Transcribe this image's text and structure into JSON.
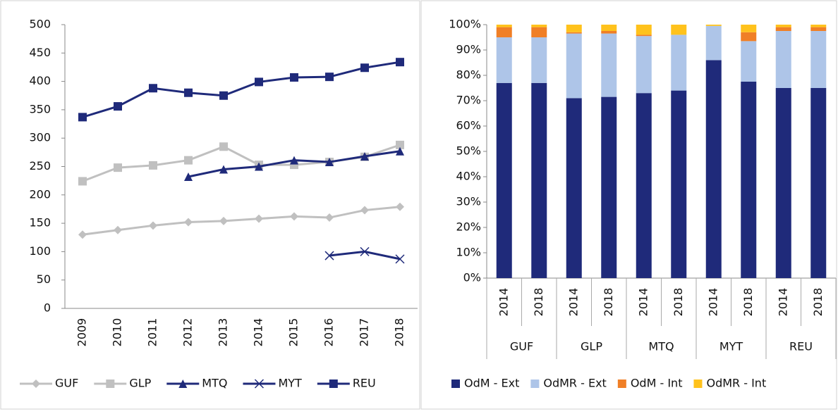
{
  "chart_data": [
    {
      "type": "line",
      "categories": [
        "2009",
        "2010",
        "2011",
        "2012",
        "2013",
        "2014",
        "2015",
        "2016",
        "2017",
        "2018"
      ],
      "ylim": [
        0,
        500
      ],
      "yticks": [
        0,
        50,
        100,
        150,
        200,
        250,
        300,
        350,
        400,
        450,
        500
      ],
      "legend": "bottom",
      "series": [
        {
          "name": "GUF",
          "color": "#c0c0c0",
          "marker": "diamond",
          "values": [
            130,
            138,
            146,
            152,
            154,
            158,
            162,
            160,
            173,
            179
          ]
        },
        {
          "name": "GLP",
          "color": "#c0c0c0",
          "marker": "square",
          "values": [
            224,
            248,
            252,
            261,
            285,
            253,
            253,
            258,
            267,
            288
          ]
        },
        {
          "name": "MTQ",
          "color": "#1f2a7a",
          "marker": "triangle",
          "values": [
            null,
            null,
            null,
            232,
            245,
            250,
            261,
            258,
            268,
            277
          ]
        },
        {
          "name": "MYT",
          "color": "#1f2a7a",
          "marker": "x",
          "values": [
            null,
            null,
            null,
            null,
            null,
            null,
            null,
            93,
            100,
            87
          ]
        },
        {
          "name": "REU",
          "color": "#1f2a7a",
          "marker": "square",
          "values": [
            337,
            356,
            388,
            380,
            375,
            399,
            407,
            408,
            424,
            434
          ]
        }
      ]
    },
    {
      "type": "stacked-bar",
      "categories": [
        "2014",
        "2018",
        "2014",
        "2018",
        "2014",
        "2018",
        "2014",
        "2018",
        "2014",
        "2018"
      ],
      "groups": [
        "GUF",
        "GLP",
        "MTQ",
        "MYT",
        "REU"
      ],
      "ylim": [
        0,
        100
      ],
      "yticks": [
        {
          "value": 0,
          "label": "0%"
        },
        {
          "value": 10,
          "label": "10%"
        },
        {
          "value": 20,
          "label": "20%"
        },
        {
          "value": 30,
          "label": "30%"
        },
        {
          "value": 40,
          "label": "40%"
        },
        {
          "value": 50,
          "label": "50%"
        },
        {
          "value": 60,
          "label": "60%"
        },
        {
          "value": 70,
          "label": "70%"
        },
        {
          "value": 80,
          "label": "80%"
        },
        {
          "value": 90,
          "label": "90%"
        },
        {
          "value": 100,
          "label": "100%"
        }
      ],
      "legend": "bottom",
      "series": [
        {
          "name": "OdM - Ext",
          "color": "#1f2a7a",
          "values": [
            77,
            77,
            71,
            71.5,
            73,
            74,
            86,
            77.5,
            75,
            75
          ]
        },
        {
          "name": "OdMR - Ext",
          "color": "#aec5e8",
          "values": [
            18,
            18,
            25.5,
            25,
            22.5,
            22,
            13.5,
            16,
            22.5,
            22.5
          ]
        },
        {
          "name": "OdM - Int",
          "color": "#f07f26",
          "values": [
            4,
            4,
            0.5,
            1,
            0.5,
            0,
            0,
            3.5,
            1.5,
            1.5
          ]
        },
        {
          "name": "OdMR - Int",
          "color": "#ffc21c",
          "values": [
            1,
            1,
            3,
            2.5,
            4,
            4,
            0.5,
            3,
            1,
            1
          ]
        }
      ]
    }
  ]
}
